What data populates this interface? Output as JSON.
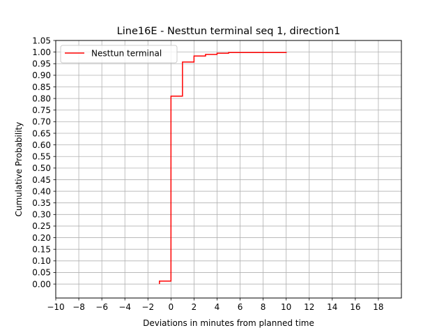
{
  "chart_data": {
    "type": "line",
    "title": "Line16E - Nesttun terminal seq 1, direction1",
    "xlabel": "Deviations in minutes from planned time",
    "ylabel": "Cumulative Probability",
    "xlim": [
      -10,
      20
    ],
    "ylim": [
      -0.06,
      1.05
    ],
    "x_ticks": [
      -10,
      -8,
      -6,
      -4,
      -2,
      0,
      2,
      4,
      6,
      8,
      10,
      12,
      14,
      16,
      18
    ],
    "x_tick_labels": [
      "−10",
      "−8",
      "−6",
      "−4",
      "−2",
      "0",
      "2",
      "4",
      "6",
      "8",
      "10",
      "12",
      "14",
      "16",
      "18"
    ],
    "y_ticks": [
      0.0,
      0.05,
      0.1,
      0.15,
      0.2,
      0.25,
      0.3,
      0.35,
      0.4,
      0.45,
      0.5,
      0.55,
      0.6,
      0.65,
      0.7,
      0.75,
      0.8,
      0.85,
      0.9,
      0.95,
      1.0,
      1.05
    ],
    "y_tick_labels": [
      "0.00",
      "0.05",
      "0.10",
      "0.15",
      "0.20",
      "0.25",
      "0.30",
      "0.35",
      "0.40",
      "0.45",
      "0.50",
      "0.55",
      "0.60",
      "0.65",
      "0.70",
      "0.75",
      "0.80",
      "0.85",
      "0.90",
      "0.95",
      "1.00",
      "1.05"
    ],
    "grid": true,
    "legend_position": "top-left",
    "series": [
      {
        "name": "Nesttun terminal",
        "color": "#ff0000",
        "step": "post",
        "x": [
          -1,
          0,
          1,
          2,
          3,
          4,
          5,
          10
        ],
        "y": [
          0.013,
          0.81,
          0.957,
          0.983,
          0.99,
          0.995,
          0.998,
          1.0
        ]
      }
    ]
  }
}
